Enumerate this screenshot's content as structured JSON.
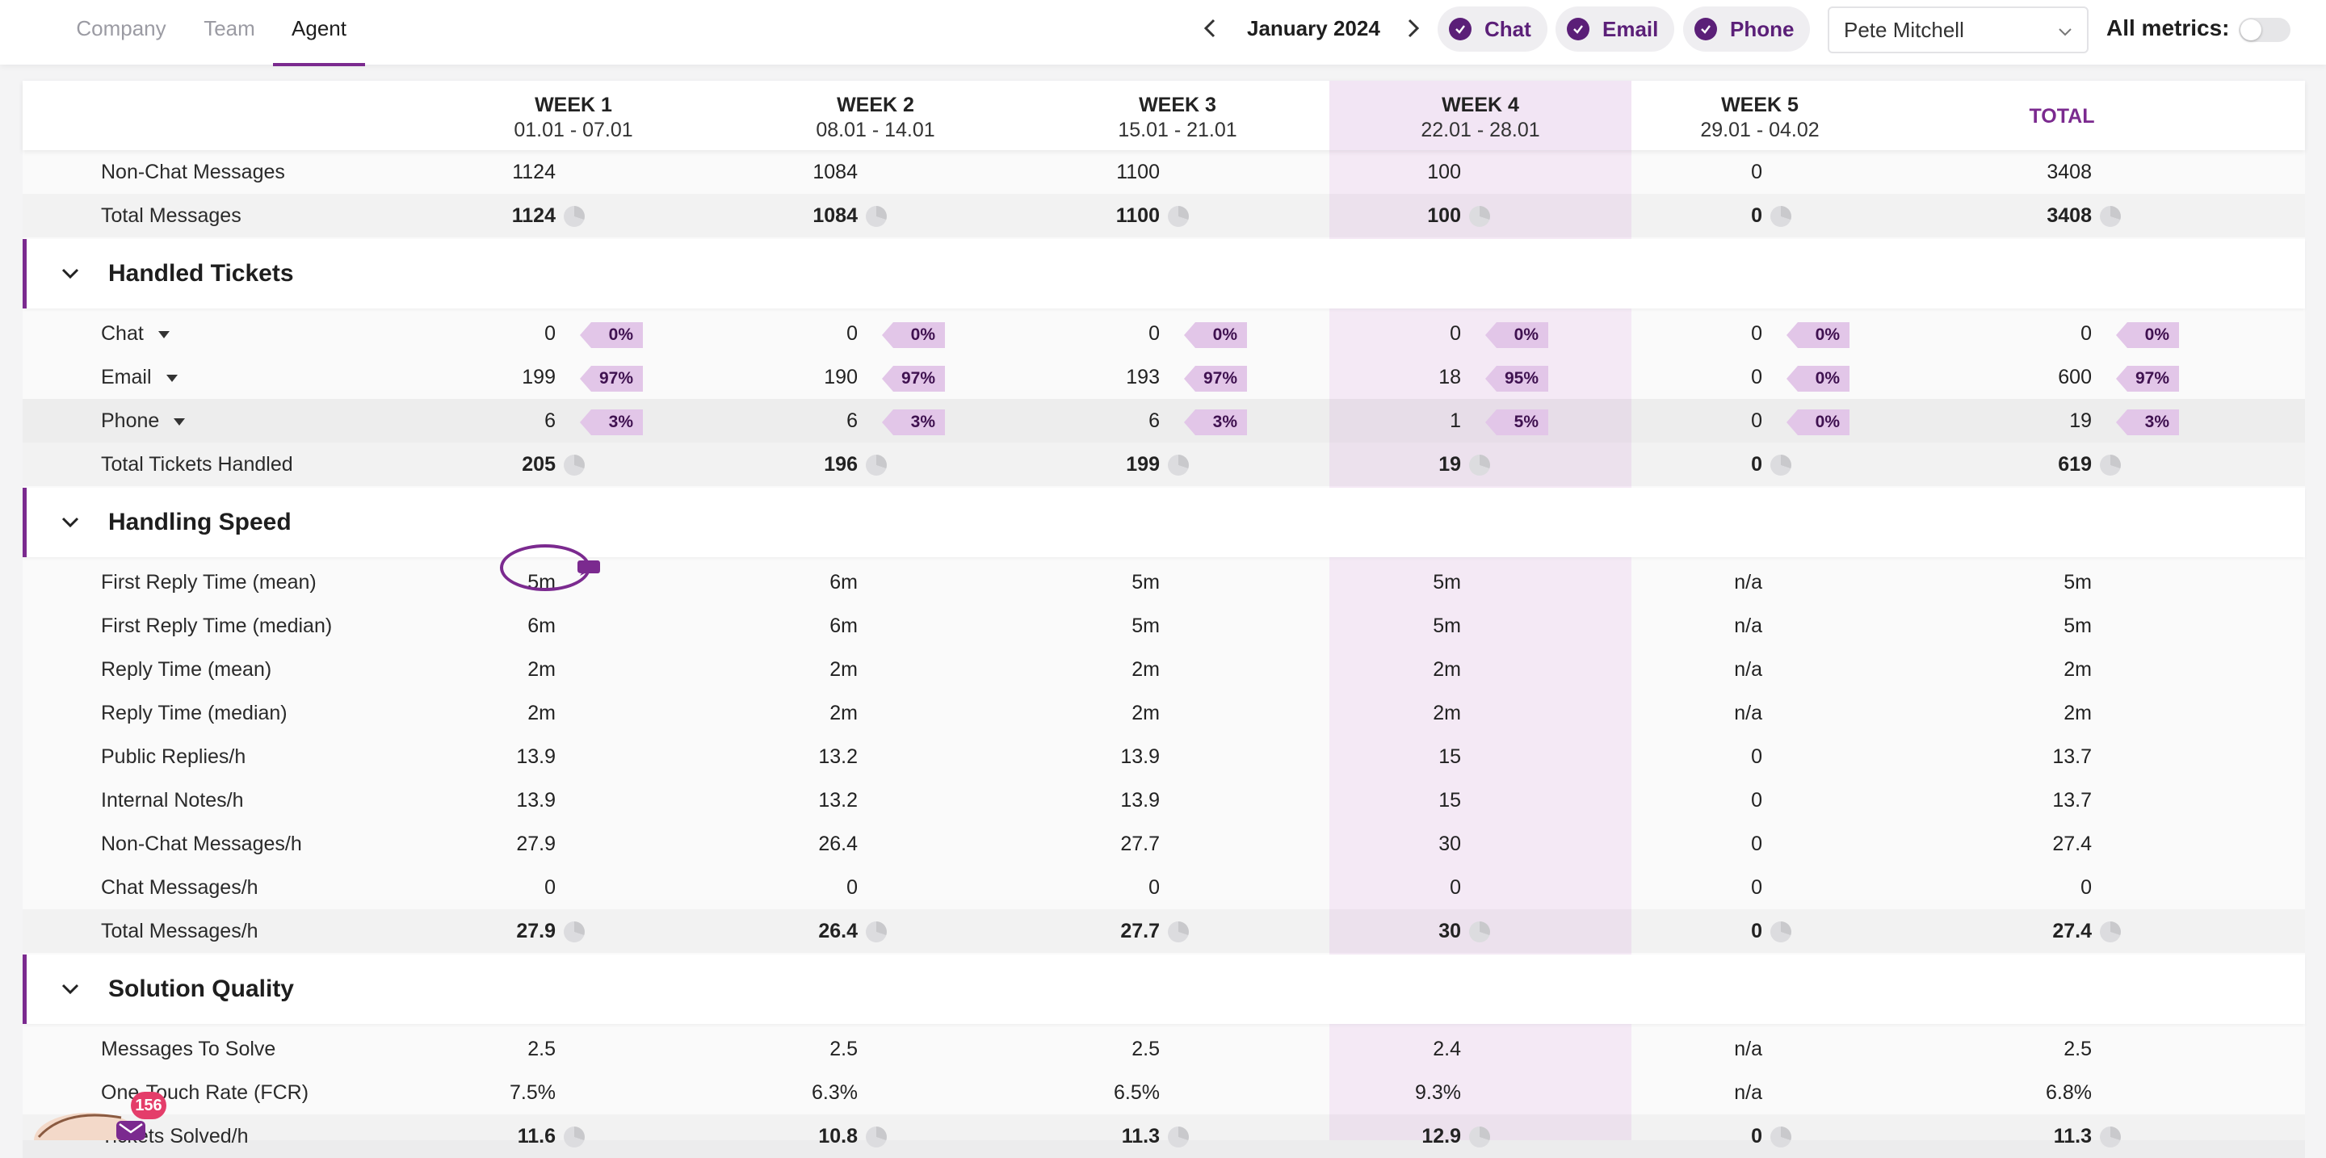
{
  "tabs": [
    {
      "label": "Company",
      "active": false
    },
    {
      "label": "Team",
      "active": false
    },
    {
      "label": "Agent",
      "active": true
    }
  ],
  "period": {
    "label": "January 2024"
  },
  "channels": [
    {
      "label": "Chat",
      "checked": true
    },
    {
      "label": "Email",
      "checked": true
    },
    {
      "label": "Phone",
      "checked": true
    }
  ],
  "agent_select": {
    "value": "Pete Mitchell"
  },
  "all_metrics": {
    "label": "All metrics:",
    "enabled": false
  },
  "columns": [
    {
      "title": "WEEK 1",
      "dates": "01.01 - 07.01"
    },
    {
      "title": "WEEK 2",
      "dates": "08.01 - 14.01"
    },
    {
      "title": "WEEK 3",
      "dates": "15.01 - 21.01"
    },
    {
      "title": "WEEK 4",
      "dates": "22.01 - 28.01"
    },
    {
      "title": "WEEK 5",
      "dates": "29.01 - 04.02"
    },
    {
      "title": "TOTAL",
      "dates": ""
    }
  ],
  "top_rows": [
    {
      "label": "Non-Chat Messages",
      "values": [
        "1124",
        "1084",
        "1100",
        "100",
        "0",
        "3408"
      ]
    },
    {
      "label": "Total Messages",
      "values": [
        "1124",
        "1084",
        "1100",
        "100",
        "0",
        "3408"
      ],
      "strong": true
    }
  ],
  "sections": [
    {
      "title": "Handled Tickets",
      "rows": [
        {
          "label": "Chat",
          "dropdown": true,
          "values": [
            "0",
            "0",
            "0",
            "0",
            "0",
            "0"
          ],
          "pcts": [
            "0%",
            "0%",
            "0%",
            "0%",
            "0%",
            "0%"
          ]
        },
        {
          "label": "Email",
          "dropdown": true,
          "values": [
            "199",
            "190",
            "193",
            "18",
            "0",
            "600"
          ],
          "pcts": [
            "97%",
            "97%",
            "97%",
            "95%",
            "0%",
            "97%"
          ]
        },
        {
          "label": "Phone",
          "dropdown": true,
          "values": [
            "6",
            "6",
            "6",
            "1",
            "0",
            "19"
          ],
          "pcts": [
            "3%",
            "3%",
            "3%",
            "5%",
            "0%",
            "3%"
          ],
          "greyed": true
        },
        {
          "label": "Total Tickets Handled",
          "values": [
            "205",
            "196",
            "199",
            "19",
            "0",
            "619"
          ],
          "strong": true
        }
      ]
    },
    {
      "title": "Handling Speed",
      "rows": [
        {
          "label": "First Reply Time (mean)",
          "values": [
            "5m",
            "6m",
            "5m",
            "5m",
            "n/a",
            "5m"
          ]
        },
        {
          "label": "First Reply Time (median)",
          "values": [
            "6m",
            "6m",
            "5m",
            "5m",
            "n/a",
            "5m"
          ]
        },
        {
          "label": "Reply Time (mean)",
          "values": [
            "2m",
            "2m",
            "2m",
            "2m",
            "n/a",
            "2m"
          ]
        },
        {
          "label": "Reply Time (median)",
          "values": [
            "2m",
            "2m",
            "2m",
            "2m",
            "n/a",
            "2m"
          ]
        },
        {
          "label": "Public Replies/h",
          "values": [
            "13.9",
            "13.2",
            "13.9",
            "15",
            "0",
            "13.7"
          ]
        },
        {
          "label": "Internal Notes/h",
          "values": [
            "13.9",
            "13.2",
            "13.9",
            "15",
            "0",
            "13.7"
          ]
        },
        {
          "label": "Non-Chat Messages/h",
          "values": [
            "27.9",
            "26.4",
            "27.7",
            "30",
            "0",
            "27.4"
          ]
        },
        {
          "label": "Chat Messages/h",
          "values": [
            "0",
            "0",
            "0",
            "0",
            "0",
            "0"
          ]
        },
        {
          "label": "Total Messages/h",
          "values": [
            "27.9",
            "26.4",
            "27.7",
            "30",
            "0",
            "27.4"
          ],
          "strong": true
        }
      ]
    },
    {
      "title": "Solution Quality",
      "rows": [
        {
          "label": "Messages To Solve",
          "values": [
            "2.5",
            "2.5",
            "2.5",
            "2.4",
            "n/a",
            "2.5"
          ]
        },
        {
          "label": "One-Touch Rate (FCR)",
          "values": [
            "7.5%",
            "6.3%",
            "6.5%",
            "9.3%",
            "n/a",
            "6.8%"
          ]
        },
        {
          "label": "Tickets Solved/h",
          "values": [
            "11.6",
            "10.8",
            "11.3",
            "12.9",
            "0",
            "11.3"
          ],
          "strong": true
        }
      ]
    }
  ],
  "notifications": {
    "count": "156"
  },
  "colors": {
    "accent": "#7b2a8f",
    "highlight_column": "#f4e9f5",
    "percent_tag": "#e2c6e8"
  }
}
